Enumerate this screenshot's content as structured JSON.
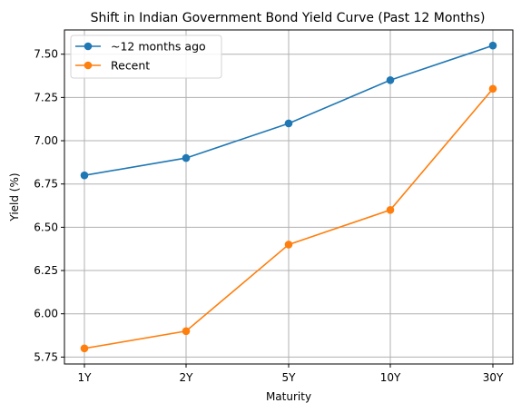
{
  "chart_data": {
    "type": "line",
    "title": "Shift in Indian Government Bond Yield Curve (Past 12 Months)",
    "xlabel": "Maturity",
    "ylabel": "Yield (%)",
    "categories": [
      "1Y",
      "2Y",
      "5Y",
      "10Y",
      "30Y"
    ],
    "ylim": [
      5.71,
      7.64
    ],
    "yticks": [
      5.75,
      6.0,
      6.25,
      6.5,
      6.75,
      7.0,
      7.25,
      7.5
    ],
    "grid": true,
    "legend_position": "top-left",
    "series": [
      {
        "name": "~12 months ago",
        "color": "#1f77b4",
        "marker": "circle",
        "values": [
          6.8,
          6.9,
          7.1,
          7.35,
          7.55
        ]
      },
      {
        "name": "Recent",
        "color": "#ff7f0e",
        "marker": "circle",
        "values": [
          5.8,
          5.9,
          6.4,
          6.6,
          7.3
        ]
      }
    ]
  }
}
